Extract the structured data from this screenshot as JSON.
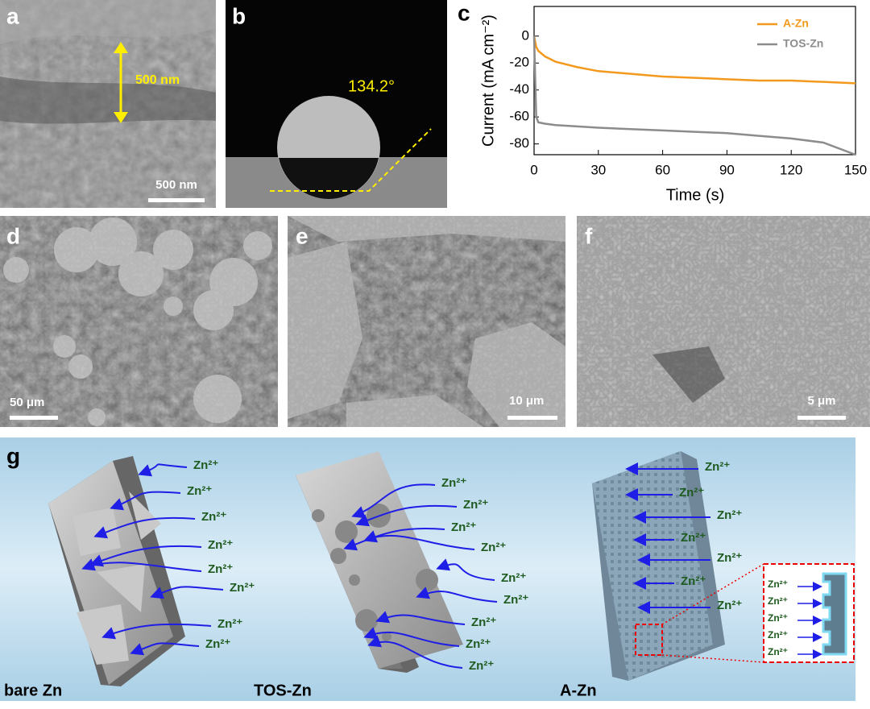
{
  "panels": {
    "a": {
      "letter": "a",
      "thickness": "500 nm",
      "scale": "500 nm"
    },
    "b": {
      "letter": "b",
      "angle": "134.2°"
    },
    "c": {
      "letter": "c"
    },
    "d": {
      "letter": "d",
      "scale": "50 μm"
    },
    "e": {
      "letter": "e",
      "scale": "10 μm"
    },
    "f": {
      "letter": "f",
      "scale": "5 μm"
    },
    "g": {
      "letter": "g"
    }
  },
  "chart_data": {
    "type": "line",
    "xlabel": "Time (s)",
    "ylabel": "Current (mA cm⁻²)",
    "x": [
      0,
      1,
      2,
      5,
      10,
      20,
      30,
      45,
      60,
      75,
      90,
      105,
      120,
      135,
      150
    ],
    "series": [
      {
        "name": "A-Zn",
        "color": "#f39a1e",
        "values": [
          0,
          -8,
          -11,
          -15,
          -19,
          -23,
          -26,
          -28,
          -30,
          -31,
          -32,
          -33,
          -33,
          -34,
          -35
        ]
      },
      {
        "name": "TOS-Zn",
        "color": "#8c8c8c",
        "values": [
          0,
          -60,
          -64,
          -65,
          -66,
          -67,
          -68,
          -69,
          -70,
          -71,
          -72,
          -74,
          -76,
          -79,
          -88
        ]
      }
    ],
    "xlim": [
      0,
      150
    ],
    "xticks": [
      0,
      30,
      60,
      90,
      120,
      150
    ],
    "ylim": [
      -88,
      22
    ],
    "yticks": [
      0,
      -20,
      -40,
      -60,
      -80
    ],
    "legend": "upper right"
  },
  "schematic": {
    "bare": {
      "label": "bare Zn",
      "ions": [
        "Zn²⁺",
        "Zn²⁺",
        "Zn²⁺",
        "Zn²⁺",
        "Zn²⁺",
        "Zn²⁺",
        "Zn²⁺",
        "Zn²⁺"
      ]
    },
    "tos": {
      "label": "TOS-Zn",
      "ions": [
        "Zn²⁺",
        "Zn²⁺",
        "Zn²⁺",
        "Zn²⁺",
        "Zn²⁺",
        "Zn²⁺",
        "Zn²⁺",
        "Zn²⁺",
        "Zn²⁺"
      ]
    },
    "azn": {
      "label": "A-Zn",
      "ions": [
        "Zn²⁺",
        "Zn²⁺",
        "Zn²⁺",
        "Zn²⁺",
        "Zn²⁺",
        "Zn²⁺",
        "Zn²⁺"
      ]
    },
    "inset": {
      "ions": [
        "Zn²⁺",
        "Zn²⁺",
        "Zn²⁺",
        "Zn²⁺",
        "Zn²⁺"
      ]
    }
  }
}
